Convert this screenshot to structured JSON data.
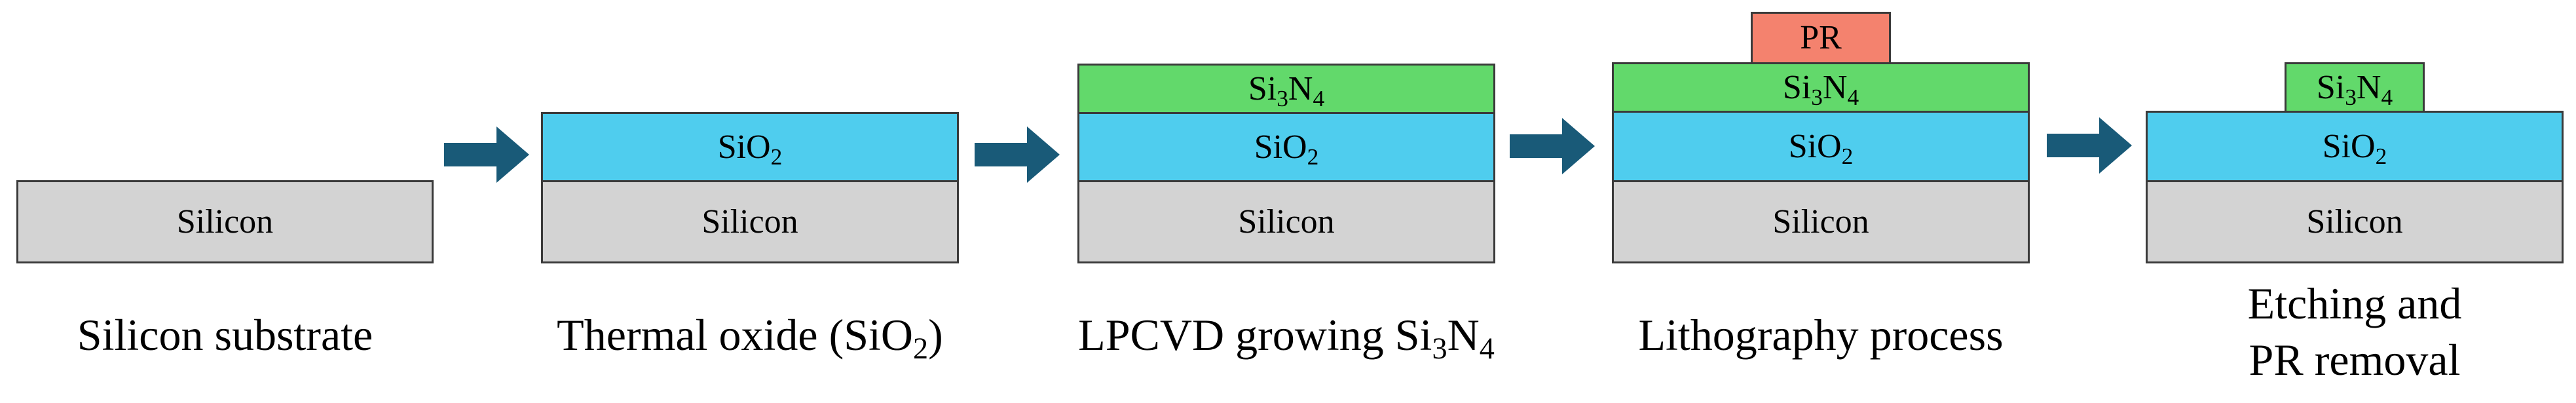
{
  "colors": {
    "silicon": "#d3d3d3",
    "oxide": "#4fcdee",
    "nitride": "#62d96b",
    "photoresist": "#f4826e",
    "arrow": "#195a78",
    "outline": "#3a3a3a"
  },
  "labels": {
    "silicon": "Silicon",
    "oxide": {
      "base": "SiO",
      "sub": "2"
    },
    "nitride": {
      "p1": "Si",
      "s1": "3",
      "p2": "N",
      "s2": "4"
    },
    "photoresist": "PR"
  },
  "steps": [
    {
      "caption": "Silicon substrate"
    },
    {
      "caption_pre": "Thermal oxide (SiO",
      "caption_sub": "2",
      "caption_post": ")"
    },
    {
      "caption_pre": "LPCVD growing Si",
      "caption_sub1": "3",
      "caption_mid": "N",
      "caption_sub2": "4"
    },
    {
      "caption": "Lithography process"
    },
    {
      "caption_line1": "Etching and",
      "caption_line2": "PR removal"
    }
  ],
  "arrow_icon": "right-arrow-icon"
}
